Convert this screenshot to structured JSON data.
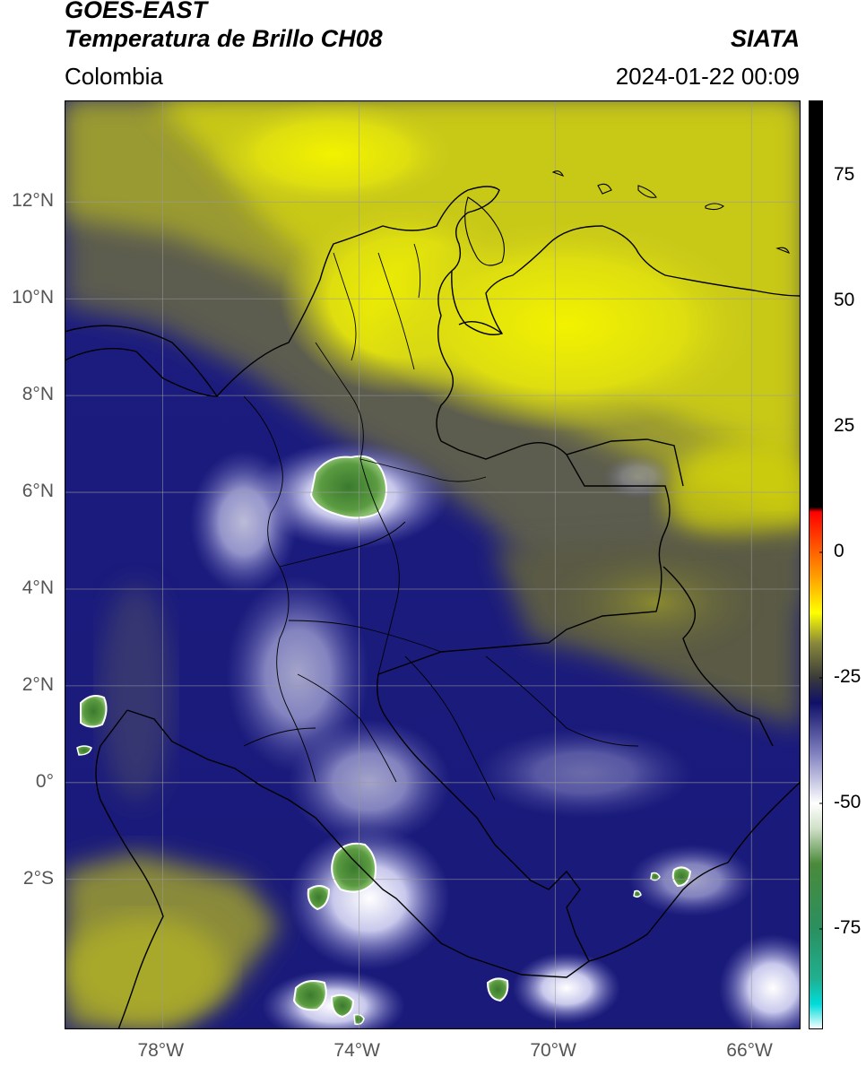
{
  "header": {
    "satellite": "GOES-EAST",
    "product": "Temperatura de Brillo CH08",
    "agency": "SIATA",
    "region": "Colombia",
    "timestamp": "2024-01-22 00:09"
  },
  "map": {
    "lon_range": [
      -80,
      -65
    ],
    "lat_range": [
      -5.1,
      14.1
    ],
    "lat_ticks": [
      {
        "value": 12,
        "label": "12°N"
      },
      {
        "value": 10,
        "label": "10°N"
      },
      {
        "value": 8,
        "label": "8°N"
      },
      {
        "value": 6,
        "label": "6°N"
      },
      {
        "value": 4,
        "label": "4°N"
      },
      {
        "value": 2,
        "label": "2°N"
      },
      {
        "value": 0,
        "label": "0°"
      },
      {
        "value": -2,
        "label": "2°S"
      }
    ],
    "lon_ticks": [
      {
        "value": -78,
        "label": "78°W"
      },
      {
        "value": -74,
        "label": "74°W"
      },
      {
        "value": -70,
        "label": "70°W"
      },
      {
        "value": -66,
        "label": "66°W"
      }
    ],
    "grid": true
  },
  "colorbar": {
    "range": [
      -95,
      90
    ],
    "ticks": [
      {
        "value": 75,
        "label": "75"
      },
      {
        "value": 50,
        "label": "50"
      },
      {
        "value": 25,
        "label": "25"
      },
      {
        "value": 0,
        "label": "0"
      },
      {
        "value": -25,
        "label": "-25"
      },
      {
        "value": -50,
        "label": "-50"
      },
      {
        "value": -75,
        "label": "-75"
      }
    ],
    "stops": [
      {
        "value": -95,
        "color": "#ffffff"
      },
      {
        "value": -90,
        "color": "#00dcdc"
      },
      {
        "value": -85,
        "color": "#20b090"
      },
      {
        "value": -75,
        "color": "#2a9060"
      },
      {
        "value": -62,
        "color": "#4a8a3a"
      },
      {
        "value": -55,
        "color": "#d0e0c8"
      },
      {
        "value": -50,
        "color": "#ffffff"
      },
      {
        "value": -40,
        "color": "#8080c0"
      },
      {
        "value": -30,
        "color": "#10106a"
      },
      {
        "value": -25,
        "color": "#3a3a3a"
      },
      {
        "value": -18,
        "color": "#8a8a3a"
      },
      {
        "value": -12,
        "color": "#ffff00"
      },
      {
        "value": -5,
        "color": "#ffa000"
      },
      {
        "value": 8,
        "color": "#ff0000"
      },
      {
        "value": 9,
        "color": "#000000"
      },
      {
        "value": 90,
        "color": "#000000"
      }
    ]
  }
}
